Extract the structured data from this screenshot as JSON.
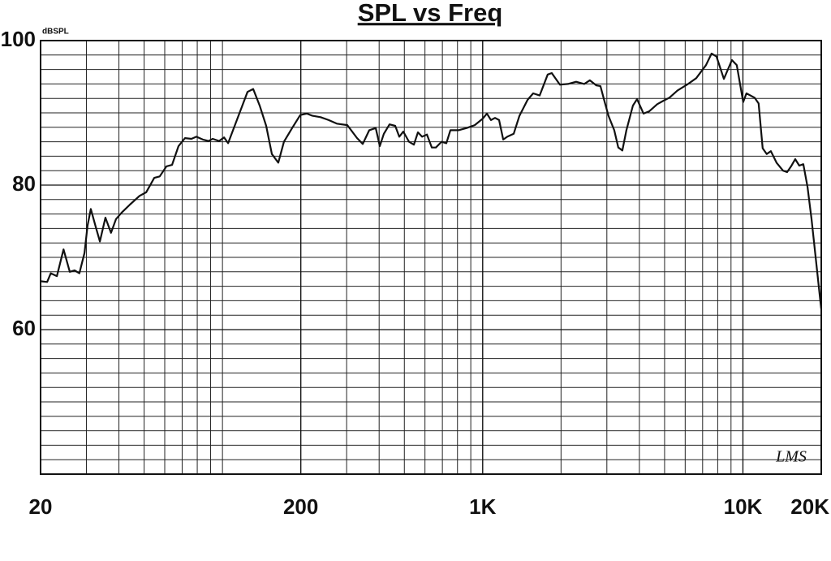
{
  "chart_data": {
    "type": "line",
    "title": "SPL vs Freq",
    "ylabel": "dBSPL",
    "annotation": "LMS",
    "x_scale": "log",
    "grid": true,
    "minor_grid": true,
    "color": "#111111",
    "xlim": [
      20,
      20000
    ],
    "xticks": [
      20,
      200,
      {
        "value": 1000,
        "label": "1K"
      },
      {
        "value": 10000,
        "label": "10K"
      },
      {
        "value": 20000,
        "label": "20K"
      }
    ],
    "ylim": [
      40,
      100
    ],
    "yticks": [
      60,
      80,
      100
    ],
    "x": [
      20,
      21.2,
      21.9,
      23.1,
      24.5,
      25.9,
      27.0,
      28.2,
      29.5,
      30.3,
      31.2,
      32.6,
      33.8,
      35.5,
      37.3,
      39.0,
      41.0,
      44.1,
      48.0,
      50.9,
      54.7,
      57.4,
      60.9,
      64.0,
      67.8,
      71.8,
      76.0,
      79.4,
      84.1,
      88.4,
      91.7,
      97.1,
      101.4,
      105.1,
      108.2,
      116.1,
      124.8,
      131.2,
      139.0,
      147.2,
      154.8,
      163.9,
      172.3,
      185.2,
      199,
      210.8,
      221.7,
      238.1,
      255.9,
      274.9,
      301.8,
      329.0,
      345.9,
      366.4,
      388.0,
      402.2,
      416.9,
      438.4,
      461.0,
      478.0,
      495.4,
      521.0,
      544.0,
      564,
      584.7,
      610.4,
      637.3,
      660.6,
      694.6,
      725.0,
      751.6,
      807.5,
      867.7,
      932.0,
      1001,
      1038,
      1076,
      1115,
      1156,
      1199,
      1243,
      1316,
      1384,
      1487,
      1563,
      1655,
      1778,
      1843,
      1980,
      2127,
      2285,
      2455,
      2581,
      2734,
      2834,
      2938,
      3044,
      3202,
      3319,
      3441,
      3566,
      3779,
      3918,
      4149,
      4362,
      4685,
      4963,
      5218,
      5606,
      6155,
      6613,
      7208,
      7578,
      7912,
      8447,
      9074,
      9473,
      10025,
      10318,
      11082,
      11487,
      11909,
      12348,
      12802,
      13460,
      14256,
      14780,
      15317,
      15882,
      16466,
      17069,
      17696,
      18348,
      19988
    ],
    "values": [
      66.7,
      66.6,
      67.8,
      67.4,
      71.1,
      68.0,
      68.2,
      67.8,
      70.6,
      74.4,
      76.7,
      74.2,
      72.2,
      75.5,
      73.4,
      75.3,
      76.2,
      77.3,
      78.5,
      79.0,
      81.0,
      81.2,
      82.6,
      82.8,
      85.4,
      86.5,
      86.4,
      86.7,
      86.3,
      86.1,
      86.4,
      86.1,
      86.6,
      85.8,
      87.0,
      89.9,
      92.9,
      93.3,
      91.0,
      88.2,
      84.3,
      83.1,
      86.0,
      87.9,
      89.7,
      89.9,
      89.6,
      89.4,
      89.0,
      88.5,
      88.3,
      86.5,
      85.7,
      87.6,
      87.9,
      85.4,
      87.1,
      88.4,
      88.2,
      86.7,
      87.4,
      86.0,
      85.6,
      87.3,
      86.7,
      87.0,
      85.2,
      85.2,
      86.0,
      85.8,
      87.6,
      87.6,
      87.9,
      88.3,
      89.2,
      89.9,
      89.0,
      89.3,
      89.0,
      86.3,
      86.7,
      87.1,
      89.6,
      91.8,
      92.7,
      92.4,
      95.3,
      95.5,
      93.9,
      94.0,
      94.3,
      94.0,
      94.5,
      93.8,
      93.7,
      91.6,
      89.6,
      87.6,
      85.2,
      84.8,
      87.6,
      91.0,
      91.9,
      89.9,
      90.2,
      91.2,
      91.7,
      92.1,
      93.1,
      94.0,
      94.8,
      96.6,
      98.2,
      97.8,
      94.7,
      97.3,
      96.6,
      91.5,
      92.7,
      92.1,
      91.3,
      85.1,
      84.3,
      84.7,
      83.1,
      82.0,
      81.8,
      82.6,
      83.6,
      82.7,
      82.9,
      79.8,
      75.3,
      62.9
    ]
  }
}
